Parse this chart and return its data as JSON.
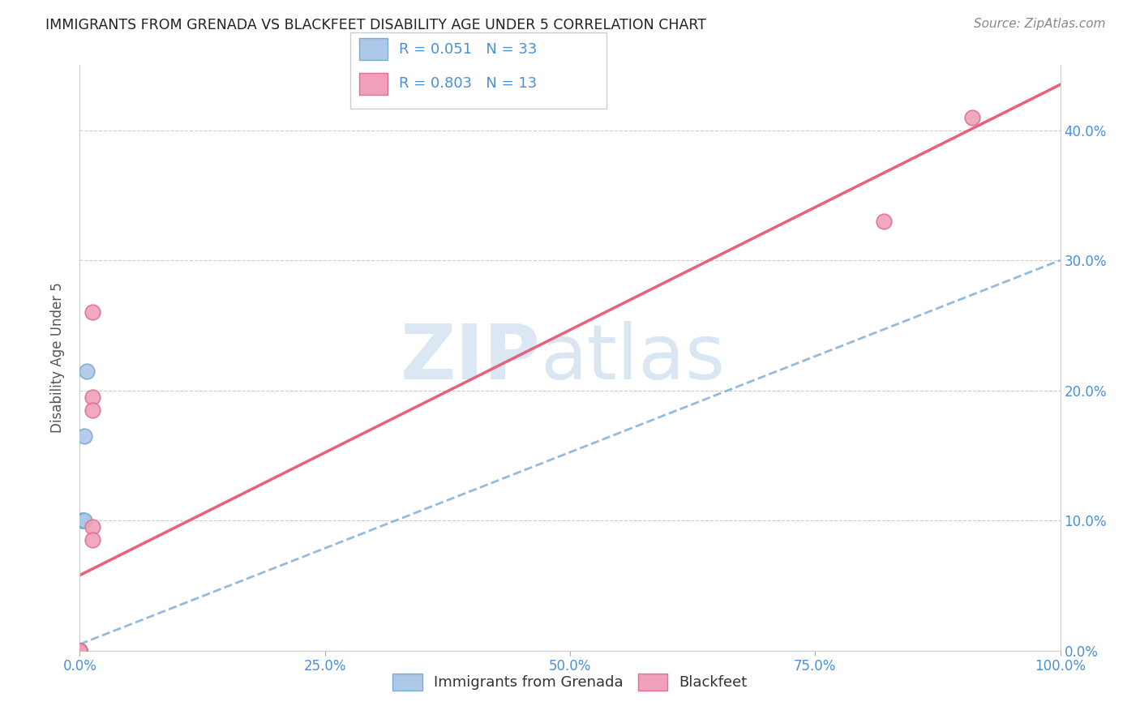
{
  "title": "IMMIGRANTS FROM GRENADA VS BLACKFEET DISABILITY AGE UNDER 5 CORRELATION CHART",
  "source": "Source: ZipAtlas.com",
  "ylabel": "Disability Age Under 5",
  "xlim": [
    0.0,
    1.0
  ],
  "ylim": [
    0.0,
    0.45
  ],
  "xticks": [
    0.0,
    0.25,
    0.5,
    0.75,
    1.0
  ],
  "yticks": [
    0.0,
    0.1,
    0.2,
    0.3,
    0.4
  ],
  "ytick_labels_right": [
    "0.0%",
    "10.0%",
    "20.0%",
    "30.0%",
    "40.0%"
  ],
  "xtick_labels": [
    "0.0%",
    "25.0%",
    "50.0%",
    "75.0%",
    "100.0%"
  ],
  "blue_scatter_x": [
    0.0,
    0.0,
    0.0,
    0.0,
    0.0,
    0.0,
    0.0,
    0.0,
    0.0,
    0.0,
    0.0,
    0.0,
    0.0,
    0.0,
    0.0,
    0.0,
    0.0,
    0.0,
    0.0,
    0.0,
    0.0,
    0.0,
    0.0,
    0.003,
    0.003,
    0.003,
    0.005,
    0.005,
    0.007,
    0.0,
    0.0,
    0.0,
    0.0
  ],
  "blue_scatter_y": [
    0.0,
    0.0,
    0.0,
    0.0,
    0.0,
    0.0,
    0.0,
    0.0,
    0.0,
    0.0,
    0.0,
    0.0,
    0.0,
    0.0,
    0.0,
    0.0,
    0.0,
    0.0,
    0.0,
    0.0,
    0.0,
    0.0,
    0.0,
    0.1,
    0.1,
    0.1,
    0.165,
    0.1,
    0.215,
    0.0,
    0.0,
    0.0,
    0.0
  ],
  "pink_scatter_x": [
    0.0,
    0.0,
    0.0,
    0.013,
    0.013,
    0.0,
    0.0,
    0.0,
    0.013,
    0.013,
    0.013,
    0.91,
    0.82
  ],
  "pink_scatter_y": [
    0.0,
    0.0,
    0.0,
    0.095,
    0.085,
    0.0,
    0.0,
    0.0,
    0.195,
    0.185,
    0.26,
    0.41,
    0.33
  ],
  "blue_line_x": [
    0.0,
    1.0
  ],
  "blue_line_y": [
    0.005,
    0.3
  ],
  "pink_line_x": [
    0.0,
    1.0
  ],
  "pink_line_y": [
    0.058,
    0.435
  ],
  "scatter_size": 180,
  "blue_color": "#adc8e8",
  "blue_edge_color": "#7aaad0",
  "pink_color": "#f0a0b8",
  "pink_edge_color": "#e07090",
  "blue_line_color": "#7aaad4",
  "pink_line_color": "#e8607a",
  "legend_R_blue": "R = 0.051",
  "legend_N_blue": "N = 33",
  "legend_R_pink": "R = 0.803",
  "legend_N_pink": "N = 13",
  "watermark_zip": "ZIP",
  "watermark_atlas": "atlas",
  "legend_label_blue": "Immigrants from Grenada",
  "legend_label_pink": "Blackfeet",
  "background_color": "#ffffff",
  "grid_color": "#cccccc",
  "title_fontsize": 12.5,
  "source_fontsize": 11,
  "tick_fontsize": 12,
  "ylabel_fontsize": 12
}
